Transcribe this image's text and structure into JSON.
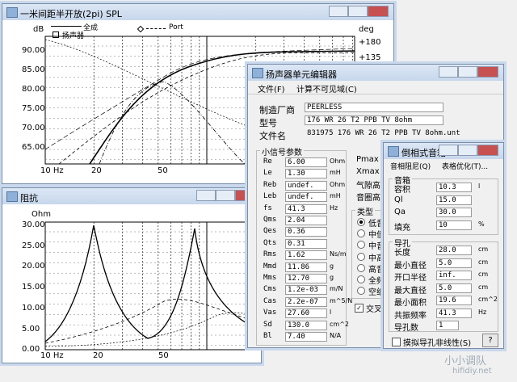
{
  "spl_window": {
    "title": "一米间距半开放(2pi) SPL",
    "y_unit": "dB",
    "y2_unit": "deg",
    "legend": {
      "total": "全成",
      "driver": "扬声器",
      "port": "Port"
    },
    "yticks": [
      "90.00",
      "85.00",
      "80.00",
      "75.00",
      "70.00",
      "65.00"
    ],
    "y2ticks": [
      "+180",
      "+135"
    ],
    "xticks": [
      "10 Hz",
      "20",
      "50"
    ]
  },
  "impedance_window": {
    "title": "阻抗",
    "y_unit": "Ohm",
    "yticks": [
      "30.00",
      "25.00",
      "20.00",
      "15.00",
      "10.00",
      "5.00",
      "0.00"
    ],
    "xticks": [
      "10 Hz",
      "20",
      "50"
    ]
  },
  "driver_editor": {
    "title": "扬声器单元编辑器",
    "menu": [
      "文件(F)",
      "计算不可见域(C)"
    ],
    "info": [
      [
        "制造厂商",
        "PEERLESS"
      ],
      [
        "型号",
        "176 WR 26 T2 PPB TV 8ohm"
      ],
      [
        "文件名",
        "831975 176 WR 26 T2 PPB TV 8ohm.unt"
      ]
    ],
    "small_signal": {
      "title": "小信号参数",
      "rows": [
        [
          "Re",
          "6.00",
          "Ohm"
        ],
        [
          "Le",
          "1.30",
          "mH"
        ],
        [
          "Reb",
          "undef.",
          "Ohm"
        ],
        [
          "Leb",
          "undef.",
          "mH"
        ],
        [
          "fs",
          "41.3",
          "Hz"
        ],
        [
          "Qms",
          "2.04"
        ],
        [
          "Qes",
          "0.36"
        ],
        [
          "Qts",
          "0.31"
        ],
        [
          "Rms",
          "1.62",
          "Ns/m"
        ],
        [
          "Mmd",
          "11.86",
          "g"
        ],
        [
          "Mms",
          "12.70",
          "g"
        ],
        [
          "Cms",
          "1.2e-03",
          "m/N"
        ],
        [
          "Cas",
          "2.2e-07",
          "m^5/N"
        ],
        [
          "Vas",
          "27.60",
          "l"
        ],
        [
          "Sd",
          "130.0",
          "cm^2"
        ],
        [
          "Bl",
          "7.40",
          "N/A"
        ]
      ]
    },
    "right_labels": [
      "Pmax",
      "Xmax",
      "气隙高",
      "音圈高"
    ],
    "type_group": {
      "title": "类型",
      "options": [
        "低音",
        "中低",
        "中音",
        "中高",
        "高音",
        "全频",
        "空纸"
      ]
    },
    "checkbox": "交叉"
  },
  "vented_box": {
    "title": "倒相式音箱",
    "menu": [
      "音相阻尼(Q)",
      "表格优化(T)..."
    ],
    "box_group": {
      "title": "音箱",
      "rows": [
        [
          "容积",
          "10.3",
          "l"
        ],
        [
          "Ql",
          "15.0"
        ],
        [
          "Qa",
          "30.0"
        ],
        [
          "填充",
          "10",
          "%"
        ]
      ]
    },
    "port_group": {
      "title": "导孔",
      "rows": [
        [
          "长度",
          "28.0",
          "cm"
        ],
        [
          "最小直径",
          "5.0",
          "cm"
        ],
        [
          "开口半径",
          "inf.",
          "cm"
        ],
        [
          "最大直径",
          "5.0",
          "cm"
        ],
        [
          "最小面积",
          "19.6",
          "cm^2"
        ],
        [
          "共振频率",
          "41.3",
          "Hz"
        ],
        [
          "导孔数",
          "1"
        ]
      ]
    },
    "checkbox": "摸拟导孔非线性(S)",
    "help": "?"
  },
  "watermark": [
    "小小调队",
    "hifidiy.net"
  ]
}
